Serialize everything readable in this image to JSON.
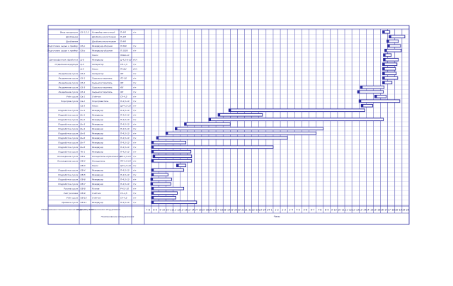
{
  "chart_data": {
    "type": "gantt",
    "footer": {
      "col_name": "Наименование технологической операции",
      "col_code": "Шифр операций",
      "col_equipment": "Наименование оборудования",
      "equipment_group": "Наименование оборудования",
      "hours_label": "Часы"
    },
    "time_labels": [
      "7–8",
      "8–9",
      "9–10",
      "10–11",
      "11–12",
      "12–13",
      "13–14",
      "14–15",
      "15–16",
      "16–17",
      "17–18",
      "18–19",
      "19–20",
      "20–21",
      "21–22",
      "22–23",
      "23–24",
      "24–1",
      "1–2",
      "2–3",
      "3–4",
      "4–5",
      "5–6",
      "6–7",
      "7–8",
      "8–9",
      "9–10",
      "10–11",
      "11–12",
      "12–13",
      "13–14",
      "14–15",
      "15–16",
      "16–17",
      "17–18",
      "18–19",
      "19–20"
    ],
    "rows": [
      {
        "operation": "Ввод продукции",
        "code": "Сб-1,2,3",
        "equipment": "Конвейер ленточный",
        "params": "П-АМ",
        "unit": "т/ч",
        "bars": [
          [
            33.3,
            34.3
          ]
        ]
      },
      {
        "operation": "Дробление",
        "code": "",
        "equipment": "Дробилка молотковая",
        "params": "П-АМ",
        "unit": "",
        "bars": [
          [
            34.2,
            36.4
          ]
        ]
      },
      {
        "operation": "Дробление",
        "code": "",
        "equipment": "Дробилка молотковая",
        "params": "П-АМ",
        "unit": "",
        "bars": [
          [
            33.9,
            35.5
          ]
        ]
      },
      {
        "operation": "Подготовка сырья к приёму",
        "code": "Сб-р",
        "equipment": "Резервуар-сборник",
        "params": "П-500",
        "unit": "т/ч",
        "bars": [
          [
            34.0,
            35.8
          ]
        ]
      },
      {
        "operation": "Подготовка сырья к приёму",
        "code": "Сб-р",
        "equipment": "Резервуар-сборник",
        "params": "П-1000",
        "unit": "т/ч",
        "bars": [
          [
            33.6,
            35.9
          ]
        ]
      },
      {
        "operation": "",
        "code": "",
        "equipment": "Насос",
        "params": "НМШ-10",
        "unit": "",
        "bars": [
          [
            33.4,
            34.5
          ]
        ]
      },
      {
        "operation": "Центрифужная обработка",
        "code": "Ц-6",
        "equipment": "Резервуар",
        "params": "Ц-4,5-6-10",
        "unit": "м³/ч",
        "bars": [
          [
            33.4,
            35.5
          ]
        ]
      },
      {
        "operation": "Отделение водорода",
        "code": "Ц-5",
        "equipment": "Сепаратор",
        "params": "СП-1,5",
        "unit": "т/ч",
        "bars": [
          [
            33.3,
            35.3
          ]
        ]
      },
      {
        "operation": "",
        "code": "Ц-5",
        "equipment": "Насос",
        "params": "П-НШ",
        "unit": "м³/ч",
        "bars": [
          [
            33.3,
            35.1
          ]
        ]
      },
      {
        "operation": "Разделение сусла",
        "code": "Сб-2",
        "equipment": "Сепаратор",
        "params": "ФЗ",
        "unit": "т/ч",
        "bars": [
          [
            33.3,
            35.2
          ]
        ]
      },
      {
        "operation": "Разделение сусла",
        "code": "Сб-1",
        "equipment": "Сырьесостаритель",
        "params": "ЛС-30",
        "unit": "т/ч",
        "bars": [
          [
            33.3,
            35.4
          ]
        ]
      },
      {
        "operation": "Разделение сусла",
        "code": "Сб-2",
        "equipment": "Сырьесостаритель",
        "params": "ФЗ",
        "unit": "т/ч",
        "bars": [
          [
            33.3,
            34.6
          ]
        ]
      },
      {
        "operation": "Разделение сусла",
        "code": "Сб-3",
        "equipment": "Сырьесостаритель",
        "params": "ФЗ",
        "unit": "т/ч",
        "bars": [
          [
            30.2,
            33.5
          ]
        ]
      },
      {
        "operation": "Разделение сусла",
        "code": "Сб-4",
        "equipment": "Сырьесостаритель",
        "params": "ФЗ",
        "unit": "т/ч",
        "bars": [
          [
            29.8,
            33.4
          ]
        ]
      },
      {
        "operation": "Учёт сусла",
        "code": "Св-1",
        "equipment": "Счётчик",
        "params": "СЧ-4,5",
        "unit": "т/ч",
        "bars": [
          [
            32.2,
            33.8
          ]
        ]
      },
      {
        "operation": "Подогрев сусла",
        "code": "Св-2",
        "equipment": "Подогреватель",
        "params": "П-4,5-10",
        "unit": "т/ч",
        "bars": [
          [
            30.0,
            35.7
          ]
        ]
      },
      {
        "operation": "",
        "code": "Св-3",
        "equipment": "Насос",
        "params": "ЦН-4,5-10",
        "unit": "т/ч",
        "bars": [
          [
            30.3,
            31.9
          ]
        ]
      },
      {
        "operation": "Подработка сусла",
        "code": "Сн-1",
        "equipment": "Резервуар",
        "params": "П-4,5-10",
        "unit": "т/ч",
        "bars": [
          [
            11.8,
            30.8
          ]
        ]
      },
      {
        "operation": "Подработка сусла",
        "code": "Бн-1",
        "equipment": "Резервуар",
        "params": "П-4,5-10",
        "unit": "т/ч",
        "bars": [
          [
            10.3,
            16.5
          ]
        ]
      },
      {
        "operation": "Подработка сусла",
        "code": "Бн-2",
        "equipment": "Резервуар",
        "params": "П-4,5-10",
        "unit": "т/ч",
        "bars": [
          [
            9.0,
            33.4
          ]
        ]
      },
      {
        "operation": "Подработка сусла",
        "code": "Бн-3",
        "equipment": "Резервуар",
        "params": "П-4,5-10",
        "unit": "т/ч",
        "bars": [
          [
            5.6,
            12.0
          ]
        ]
      },
      {
        "operation": "Подработка сусла",
        "code": "Бн-4",
        "equipment": "Резервуар",
        "params": "П-4,5-10",
        "unit": "т/ч",
        "bars": [
          [
            4.3,
            25.0
          ]
        ]
      },
      {
        "operation": "Подработка сусла",
        "code": "Бн-5",
        "equipment": "Резервуар",
        "params": "П-4,5-10",
        "unit": "т/ч",
        "bars": [
          [
            3.0,
            24.0
          ]
        ]
      },
      {
        "operation": "Подработка сусла",
        "code": "Бн-6",
        "equipment": "Резервуар",
        "params": "П-4,5-10",
        "unit": "т/ч",
        "bars": [
          [
            1.7,
            20.0
          ]
        ]
      },
      {
        "operation": "Подработка сусла",
        "code": "Бн-7",
        "equipment": "Резервуар",
        "params": "П-4,5-10",
        "unit": "т/ч",
        "bars": [
          [
            1.0,
            5.8
          ]
        ]
      },
      {
        "operation": "Подработка сусла",
        "code": "Бн-8",
        "equipment": "Резервуар",
        "params": "П-4,5-10",
        "unit": "т/ч",
        "bars": [
          [
            1.0,
            18.0
          ]
        ]
      },
      {
        "operation": "Подработка сусла",
        "code": "ТК-1",
        "equipment": "Резервуар",
        "params": "П-4,5-10",
        "unit": "т/ч",
        "bars": [
          [
            1.0,
            6.5
          ]
        ]
      },
      {
        "operation": "Охлаждение сусла",
        "code": "ОВ-1",
        "equipment": "Охладитель-нормализатор",
        "params": "ПЛ-4,5-10",
        "unit": "т/ч",
        "bars": [
          [
            1.2,
            6.6
          ]
        ]
      },
      {
        "operation": "Охлаждение сусла",
        "code": "ОВ-2",
        "equipment": "Охладитель",
        "params": "ПЛ-4,5-10",
        "unit": "т/ч",
        "bars": [
          [
            1.0,
            6.6
          ]
        ]
      },
      {
        "operation": "",
        "code": "ОВ-3",
        "equipment": "Насос",
        "params": "ЦН-4,5-10",
        "unit": "т/ч",
        "bars": [
          [
            4.5,
            5.8
          ]
        ]
      },
      {
        "operation": "Подработка сусла",
        "code": "ОВ-4",
        "equipment": "Резервуар",
        "params": "П-4,5-10",
        "unit": "т/ч",
        "bars": [
          [
            1.0,
            5.5
          ]
        ]
      },
      {
        "operation": "Подработка сусла",
        "code": "ОВ-5",
        "equipment": "Резервуар",
        "params": "П-4,5-10",
        "unit": "т/ч",
        "bars": [
          [
            1.0,
            3.3
          ]
        ]
      },
      {
        "operation": "Подработка сусла",
        "code": "ОВ-6",
        "equipment": "Резервуар",
        "params": "П-4,5-10",
        "unit": "т/ч",
        "bars": [
          [
            0.9,
            3.8
          ]
        ]
      },
      {
        "operation": "Подработка сусла",
        "code": "ОВ-7",
        "equipment": "Резервуар",
        "params": "П-4,5-10",
        "unit": "т/ч",
        "bars": [
          [
            0.9,
            3.7
          ]
        ]
      },
      {
        "operation": "Розлив сусла",
        "code": "ОВ-8",
        "equipment": "Розлив",
        "params": "Р-4,5-10",
        "unit": "т/ч",
        "bars": [
          [
            1.0,
            5.5
          ]
        ]
      },
      {
        "operation": "Учёт розлива",
        "code": "ОВ-9",
        "equipment": "Счётчик",
        "params": "СЧ-4,5",
        "unit": "т/ч",
        "bars": [
          [
            1.0,
            4.6
          ]
        ]
      },
      {
        "operation": "Учёт сусла",
        "code": "ОВ-10",
        "equipment": "Счётчик",
        "params": "СЧ-4,5",
        "unit": "т/ч",
        "bars": [
          [
            1.0,
            4.4
          ]
        ]
      },
      {
        "operation": "Приёмка сусла",
        "code": "ОВ-11",
        "equipment": "Резервуар",
        "params": "П-4,5-10",
        "unit": "т/ч",
        "bars": [
          [
            1.0,
            7.3
          ]
        ]
      }
    ]
  }
}
